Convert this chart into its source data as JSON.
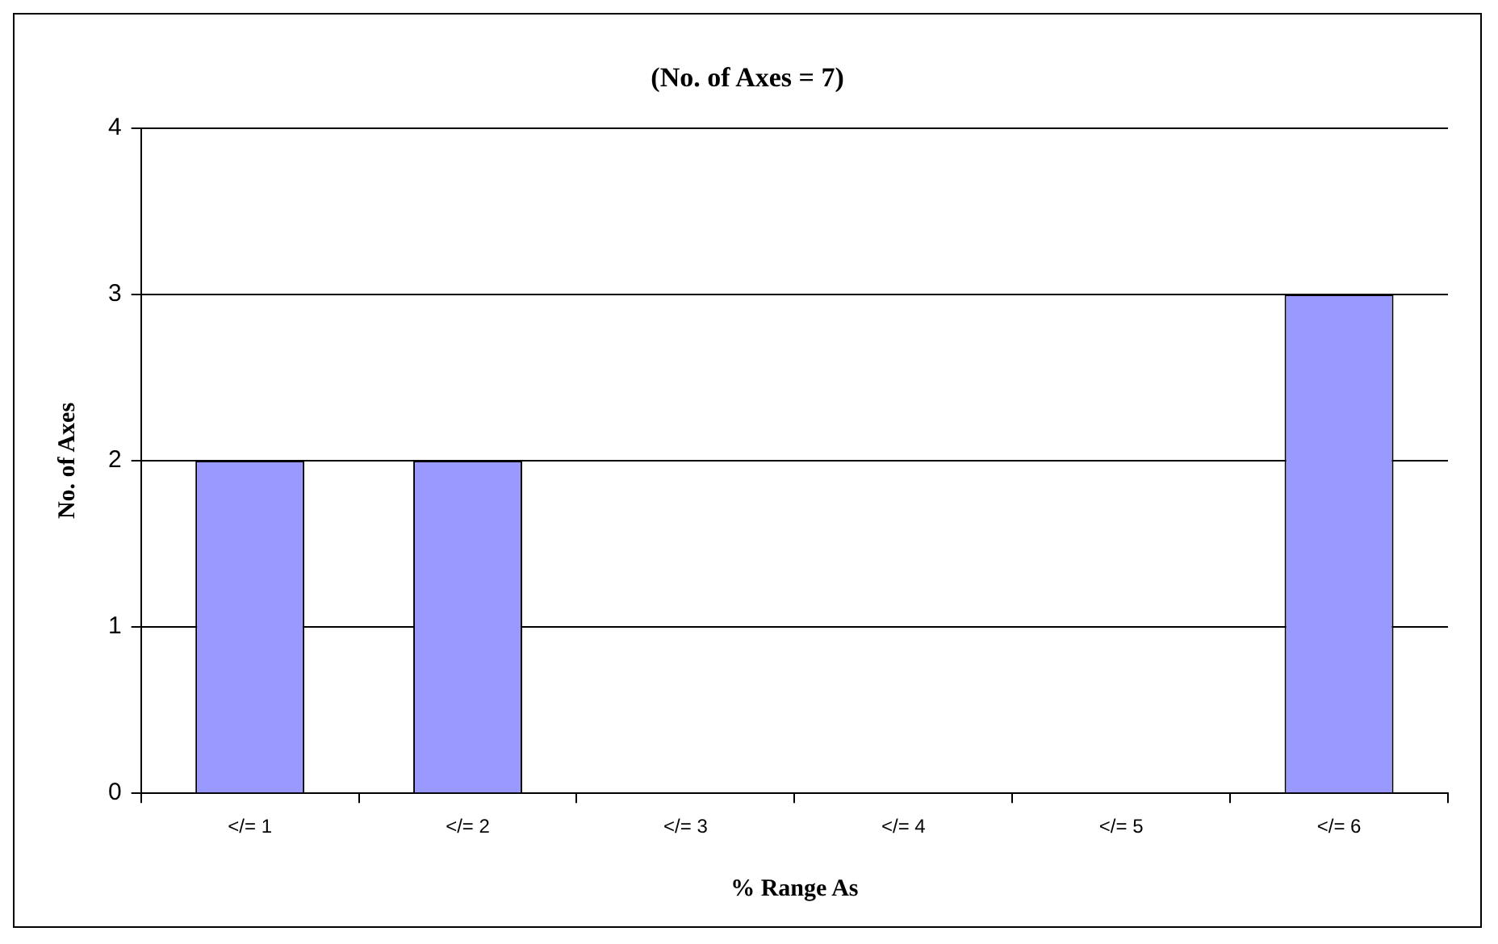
{
  "chart_data": {
    "type": "bar",
    "title": "(No. of Axes = 7)",
    "xlabel": "% Range As",
    "ylabel": "No. of Axes",
    "categories": [
      "</= 1",
      "</= 2",
      "</= 3",
      "</= 4",
      "</= 5",
      "</= 6"
    ],
    "values": [
      2,
      2,
      0,
      0,
      0,
      3
    ],
    "color": "#9999ff",
    "ylim": [
      0,
      4
    ],
    "yticks": [
      0,
      1,
      2,
      3,
      4
    ],
    "grid": "y",
    "legend": false
  }
}
